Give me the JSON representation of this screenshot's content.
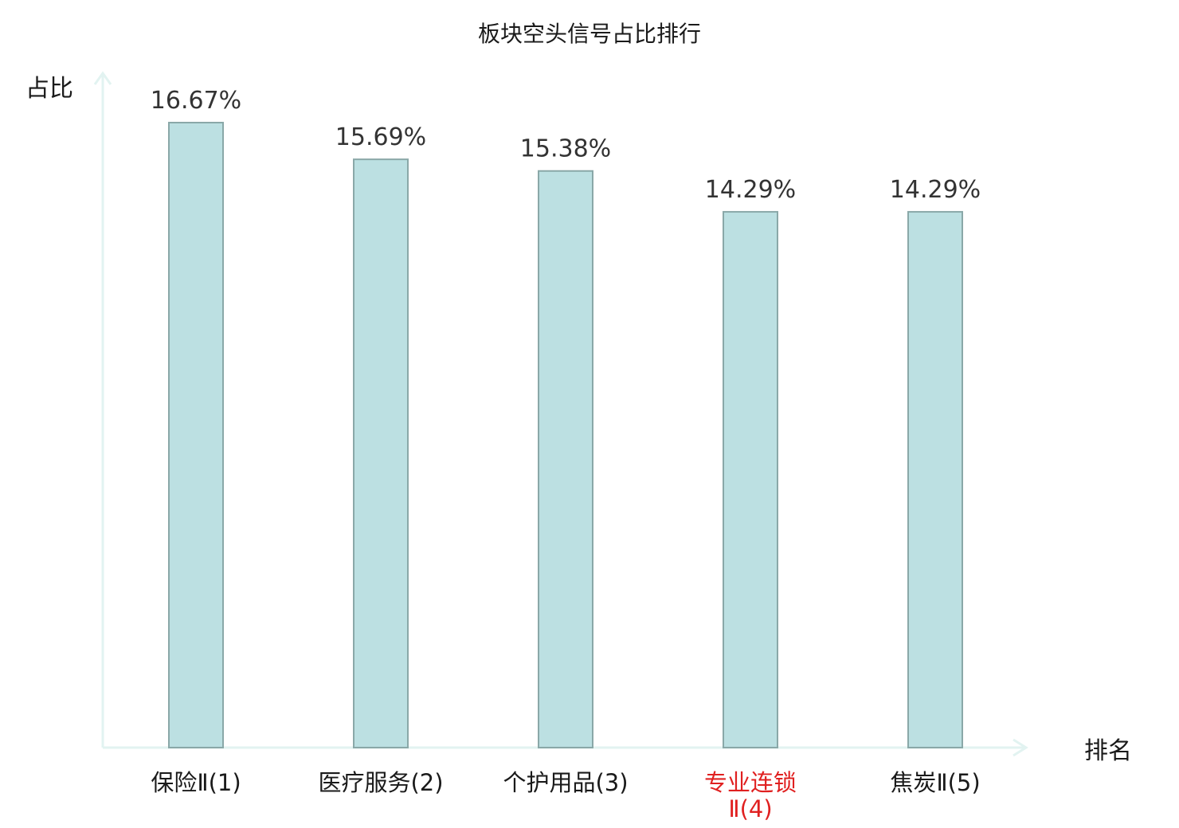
{
  "chart_data": {
    "type": "bar",
    "title": "板块空头信号占比排行",
    "ylabel": "占比",
    "xlabel": "排名",
    "ylim": [
      0,
      16.67
    ],
    "grid": false,
    "legend": "none",
    "categories": [
      [
        "保险Ⅱ(1)"
      ],
      [
        "医疗服务(2)"
      ],
      [
        "个护用品(3)"
      ],
      [
        "专业连锁",
        "Ⅱ(4)"
      ],
      [
        "焦炭Ⅱ(5)"
      ]
    ],
    "values": [
      16.67,
      15.69,
      15.38,
      14.29,
      14.29
    ],
    "value_labels": [
      "16.67%",
      "15.69%",
      "15.38%",
      "14.29%",
      "14.29%"
    ],
    "highlight_index": 3,
    "colors": {
      "bar_fill": "#bce0e2",
      "bar_stroke": "#8aa8a8",
      "axis": "#e2f3f1",
      "highlight_label": "#e02020",
      "label": "#1a1a1a",
      "value_label": "#333333"
    }
  }
}
